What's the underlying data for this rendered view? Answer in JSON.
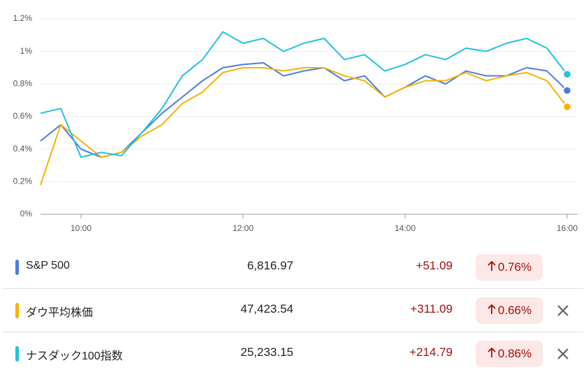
{
  "chart_data": {
    "type": "line",
    "x": [
      9.5,
      9.75,
      10,
      10.25,
      10.5,
      10.75,
      11,
      11.25,
      11.5,
      11.75,
      12,
      12.25,
      12.5,
      12.75,
      13,
      13.25,
      13.5,
      13.75,
      14,
      14.25,
      14.5,
      14.75,
      15,
      15.25,
      15.5,
      15.75,
      16
    ],
    "xlim": [
      9.5,
      16
    ],
    "xticks": [
      {
        "value": 10,
        "label": "10:00"
      },
      {
        "value": 12,
        "label": "12:00"
      },
      {
        "value": 14,
        "label": "14:00"
      },
      {
        "value": 16,
        "label": "16:00"
      }
    ],
    "ylim": [
      0,
      1.2
    ],
    "yticks": [
      {
        "value": 0,
        "label": "0%"
      },
      {
        "value": 0.2,
        "label": "0.2%"
      },
      {
        "value": 0.4,
        "label": "0.4%"
      },
      {
        "value": 0.6,
        "label": "0.6%"
      },
      {
        "value": 0.8,
        "label": "0.8%"
      },
      {
        "value": 1,
        "label": "1%"
      },
      {
        "value": 1.2,
        "label": "1.2%"
      }
    ],
    "grid": true,
    "series": [
      {
        "name": "S&P 500",
        "color": "#4b7be5",
        "values": [
          0.45,
          0.55,
          0.4,
          0.35,
          0.38,
          0.5,
          0.62,
          0.72,
          0.82,
          0.9,
          0.92,
          0.93,
          0.85,
          0.88,
          0.9,
          0.82,
          0.85,
          0.72,
          0.78,
          0.85,
          0.8,
          0.88,
          0.85,
          0.85,
          0.9,
          0.88,
          0.76
        ]
      },
      {
        "name": "ダウ平均株価",
        "color": "#f4b400",
        "values": [
          0.18,
          0.55,
          0.45,
          0.35,
          0.38,
          0.48,
          0.55,
          0.68,
          0.75,
          0.87,
          0.9,
          0.9,
          0.88,
          0.9,
          0.9,
          0.85,
          0.82,
          0.72,
          0.78,
          0.82,
          0.82,
          0.87,
          0.82,
          0.85,
          0.87,
          0.82,
          0.66
        ]
      },
      {
        "name": "ナスダック100指数",
        "color": "#24c1e0",
        "values": [
          0.62,
          0.65,
          0.35,
          0.38,
          0.36,
          0.5,
          0.65,
          0.85,
          0.95,
          1.12,
          1.05,
          1.08,
          1.0,
          1.05,
          1.08,
          0.95,
          0.98,
          0.88,
          0.92,
          0.98,
          0.95,
          1.02,
          1.0,
          1.05,
          1.08,
          1.02,
          0.86
        ]
      }
    ]
  },
  "quotes": [
    {
      "price": "6,816.97",
      "change": "+51.09",
      "change_percent": "0.76%",
      "removable": false
    },
    {
      "price": "47,423.54",
      "change": "+311.09",
      "change_percent": "0.66%",
      "removable": true
    },
    {
      "price": "25,233.15",
      "change": "+214.79",
      "change_percent": "0.86%",
      "removable": true
    }
  ]
}
